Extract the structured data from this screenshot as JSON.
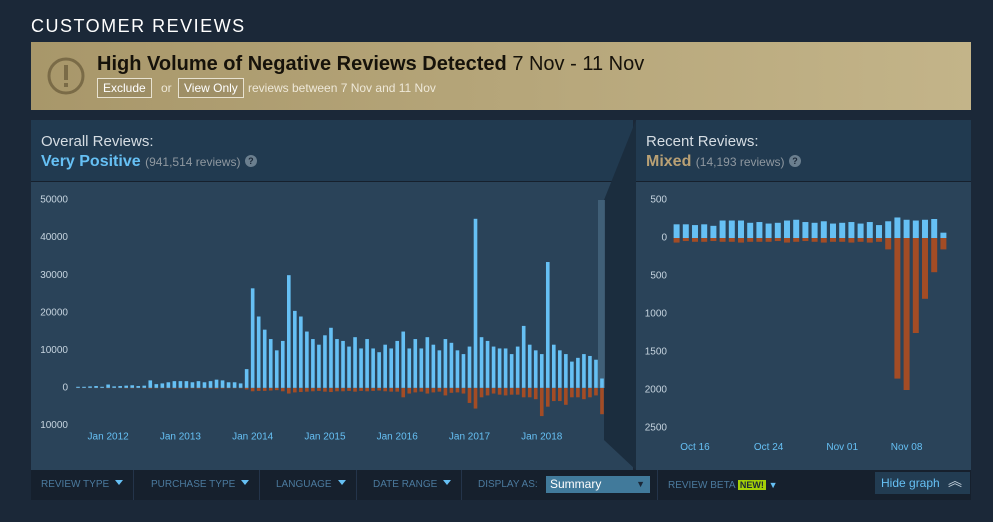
{
  "header": {
    "title": "CUSTOMER REVIEWS"
  },
  "banner": {
    "title": "High Volume of Negative Reviews Detected",
    "dates": "7 Nov - 11 Nov",
    "exclude": "Exclude",
    "or": "or",
    "view_only": "View Only",
    "note": "reviews between 7 Nov and 11 Nov"
  },
  "overall": {
    "label": "Overall Reviews:",
    "rating": "Very Positive",
    "count": "(941,514 reviews)",
    "help": "?"
  },
  "recent": {
    "label": "Recent Reviews:",
    "rating": "Mixed",
    "count": "(14,193 reviews)",
    "help": "?"
  },
  "filters": {
    "review_type": "REVIEW TYPE",
    "purchase_type": "PURCHASE TYPE",
    "language": "LANGUAGE",
    "date_range": "DATE RANGE",
    "display_as": "DISPLAY AS:",
    "display_value": "Summary",
    "review_beta": "REVIEW BETA",
    "new_badge": "NEW!",
    "hide_graph": "Hide graph"
  },
  "chart_data": [
    {
      "type": "bar",
      "categories": [
        null,
        null,
        null,
        null,
        null,
        "Jan 2012",
        null,
        null,
        null,
        null,
        null,
        null,
        null,
        null,
        null,
        null,
        null,
        "Jan 2013",
        null,
        null,
        null,
        null,
        null,
        null,
        null,
        null,
        null,
        null,
        null,
        "Jan 2014",
        null,
        null,
        null,
        null,
        null,
        null,
        null,
        null,
        null,
        null,
        null,
        "Jan 2015",
        null,
        null,
        null,
        null,
        null,
        null,
        null,
        null,
        null,
        null,
        null,
        "Jan 2016",
        null,
        null,
        null,
        null,
        null,
        null,
        null,
        null,
        null,
        null,
        null,
        "Jan 2017",
        null,
        null,
        null,
        null,
        null,
        null,
        null,
        null,
        null,
        null,
        null,
        "Jan 2018",
        null,
        null,
        null,
        null,
        null,
        null,
        null,
        null,
        null,
        null
      ],
      "series": [
        {
          "color": "#66c0f4",
          "values": [
            300,
            300,
            400,
            500,
            300,
            900,
            400,
            500,
            600,
            700,
            500,
            600,
            2000,
            1000,
            1200,
            1500,
            1800,
            1800,
            1800,
            1500,
            1800,
            1500,
            1800,
            2200,
            2000,
            1500,
            1500,
            1200,
            5000,
            26500,
            19000,
            15500,
            13000,
            10000,
            12500,
            30000,
            20500,
            19000,
            15000,
            13000,
            11500,
            14000,
            16000,
            13000,
            12500,
            11000,
            13500,
            10500,
            13000,
            10500,
            9500,
            11500,
            10500,
            12500,
            15000,
            10500,
            13000,
            10500,
            13500,
            11500,
            10000,
            13000,
            12000,
            10000,
            9000,
            11000,
            45000,
            13500,
            12500,
            11000,
            10500,
            10500,
            9000,
            11000,
            16500,
            11500,
            10000,
            9000,
            33500,
            11500,
            10000,
            9000,
            7000,
            8000,
            9000,
            8500,
            7500,
            2500
          ]
        },
        {
          "color": "#a34c25",
          "values": [
            -50,
            -50,
            -50,
            -50,
            -50,
            -100,
            -50,
            -50,
            -100,
            -100,
            -50,
            -100,
            -150,
            -100,
            -100,
            -100,
            -150,
            -150,
            -150,
            -100,
            -150,
            -100,
            -150,
            -200,
            -150,
            -100,
            -100,
            -100,
            -400,
            -900,
            -800,
            -800,
            -700,
            -600,
            -900,
            -1500,
            -1200,
            -1100,
            -1000,
            -900,
            -800,
            -1000,
            -1100,
            -900,
            -900,
            -800,
            -1000,
            -800,
            -900,
            -800,
            -700,
            -900,
            -1000,
            -1000,
            -2500,
            -1500,
            -1200,
            -1000,
            -1500,
            -1200,
            -1000,
            -2000,
            -1300,
            -1200,
            -1500,
            -4000,
            -5500,
            -2500,
            -2000,
            -1500,
            -1800,
            -2000,
            -1800,
            -1800,
            -2500,
            -2500,
            -3000,
            -7500,
            -5000,
            -3500,
            -3500,
            -4500,
            -2500,
            -2500,
            -3000,
            -2500,
            -2000,
            -7000
          ]
        }
      ],
      "ylim": [
        -12000,
        52000
      ],
      "yticks": [
        {
          "value": -10000,
          "label": "10000"
        },
        0,
        10000,
        20000,
        30000,
        40000,
        50000
      ]
    },
    {
      "type": "bar",
      "categories": [
        null,
        null,
        "Oct 16",
        null,
        null,
        null,
        null,
        null,
        null,
        null,
        "Oct 24",
        null,
        null,
        null,
        null,
        null,
        null,
        null,
        "Nov 01",
        null,
        null,
        null,
        null,
        null,
        null,
        "Nov 08",
        null,
        null,
        null,
        null
      ],
      "series": [
        {
          "color": "#66c0f4",
          "values": [
            180,
            180,
            170,
            180,
            160,
            230,
            230,
            230,
            200,
            210,
            190,
            200,
            230,
            240,
            210,
            200,
            220,
            190,
            200,
            210,
            190,
            210,
            170,
            220,
            270,
            240,
            230,
            240,
            250,
            70
          ]
        },
        {
          "color": "#a34c25",
          "values": [
            -60,
            -40,
            -50,
            -50,
            -40,
            -50,
            -50,
            -60,
            -50,
            -50,
            -50,
            -40,
            -60,
            -50,
            -40,
            -50,
            -60,
            -50,
            -50,
            -60,
            -50,
            -60,
            -50,
            -150,
            -1850,
            -2000,
            -1250,
            -800,
            -450,
            -150
          ]
        }
      ],
      "ylim": [
        -2700,
        700
      ],
      "yticks": [
        {
          "value": -2500,
          "label": "2500"
        },
        {
          "value": -2000,
          "label": "2000"
        },
        {
          "value": -1500,
          "label": "1500"
        },
        {
          "value": -1000,
          "label": "1000"
        },
        {
          "value": -500,
          "label": "500"
        },
        0,
        500
      ]
    }
  ]
}
